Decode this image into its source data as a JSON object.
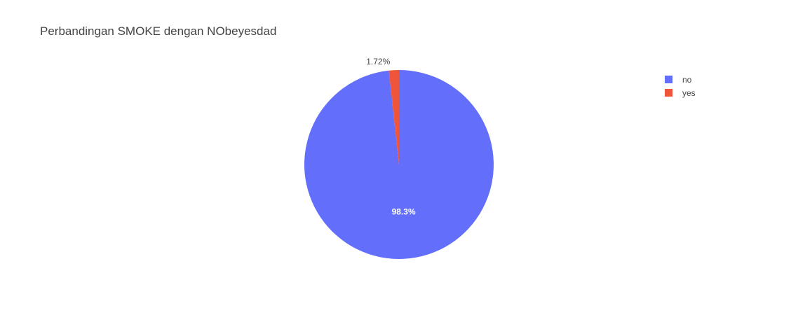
{
  "chart_data": {
    "type": "pie",
    "title": "Perbandingan SMOKE dengan NObeyesdad",
    "labels": [
      "no",
      "yes"
    ],
    "values": [
      98.28,
      1.72
    ],
    "value_labels": [
      "98.3%",
      "1.72%"
    ],
    "colors": [
      "#636efa",
      "#ef553b"
    ],
    "label_colors": [
      "#ffffff",
      "#444444"
    ],
    "legend": {
      "entries": [
        "no",
        "yes"
      ],
      "position": "top-right"
    }
  }
}
